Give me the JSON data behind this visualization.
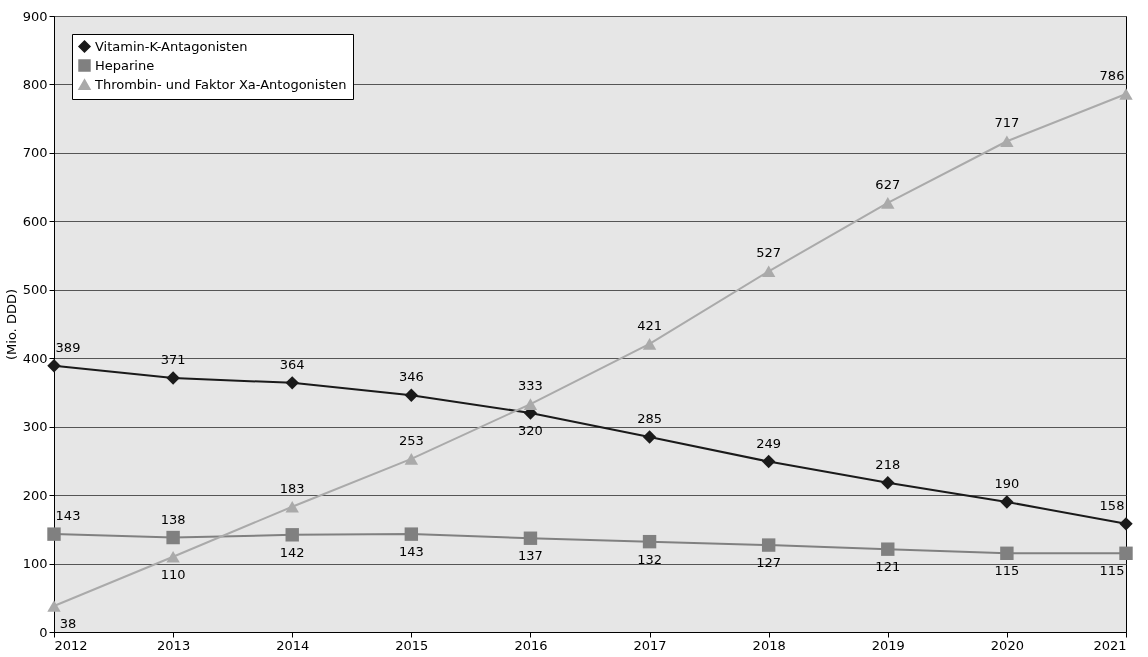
{
  "chart_data": {
    "type": "line",
    "ylabel": "(Mio. DDD)",
    "x": [
      2012,
      2013,
      2014,
      2015,
      2016,
      2017,
      2018,
      2019,
      2020,
      2021
    ],
    "xlim": [
      2012,
      2021
    ],
    "xticks": [
      2012,
      2013,
      2014,
      2015,
      2016,
      2017,
      2018,
      2019,
      2020,
      2021
    ],
    "ylim": [
      0,
      900
    ],
    "yticks": [
      0,
      100,
      200,
      300,
      400,
      500,
      600,
      700,
      800,
      900
    ],
    "grid": "y",
    "legend": "top left",
    "data_labels": true,
    "line_style": "solid",
    "series": [
      {
        "name": "Vitamin-K-Antagonisten",
        "color": "#1a1a1a",
        "marker": "diamond",
        "values": [
          389,
          371,
          364,
          346,
          320,
          285,
          249,
          218,
          190,
          158
        ]
      },
      {
        "name": "Heparine",
        "color": "#808080",
        "marker": "square",
        "values": [
          143,
          138,
          142,
          143,
          137,
          132,
          127,
          121,
          115,
          115
        ]
      },
      {
        "name": "Thrombin- und Faktor Xa-Antogonisten",
        "color": "#aaaaaa",
        "marker": "triangle",
        "values": [
          38,
          110,
          183,
          253,
          333,
          421,
          527,
          627,
          717,
          786
        ]
      }
    ]
  }
}
